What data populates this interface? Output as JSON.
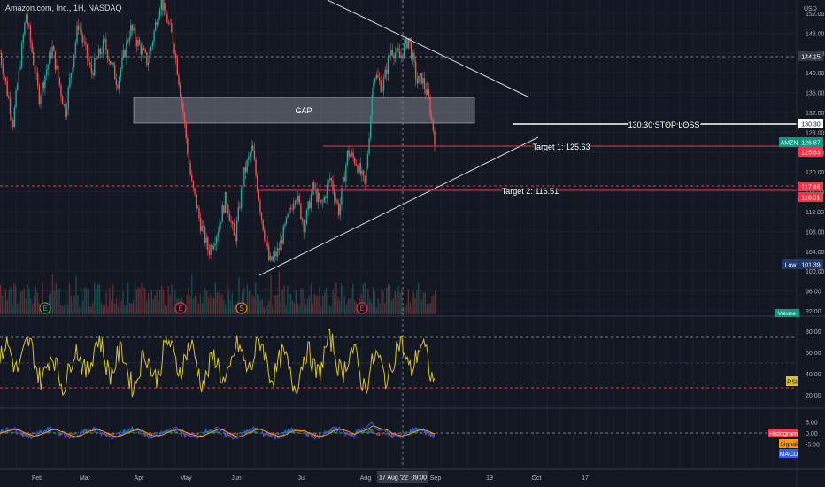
{
  "header": {
    "title": "Amazon.com, Inc., 1H, NASDAQ"
  },
  "price_axis": {
    "currency": "USD",
    "ticks": [
      "152.00",
      "148.00",
      "144.00",
      "140.00",
      "136.00",
      "132.00",
      "128.00",
      "124.00",
      "120.00",
      "116.00",
      "112.00",
      "108.00",
      "104.00",
      "100.00",
      "96.00",
      "92.00"
    ]
  },
  "rsi_axis": {
    "ticks": [
      "80.00",
      "60.00",
      "40.00",
      "20.00"
    ]
  },
  "macd_axis": {
    "ticks": [
      "5.00",
      "0.00",
      "-5.00"
    ]
  },
  "time_axis": {
    "labels": [
      "Feb",
      "Mar",
      "Apr",
      "May",
      "Jun",
      "Jul",
      "Aug",
      "Sep",
      "19",
      "Oct",
      "17"
    ],
    "crosshair_label": "17 Aug '22",
    "crosshair_time": "09:00"
  },
  "annotations": {
    "gap": "GAP",
    "stop_loss": "130.30 STOP LOSS",
    "target1": "Target 1:  125.63",
    "target2": "Target 2: 116.51"
  },
  "badges": {
    "crosshair_price": "144.15",
    "stop": "130.30",
    "symbol": "AMZN",
    "last_price": "126.87",
    "target1": "125.63",
    "level_117": "117.46",
    "target2": "116.51",
    "low_label": "Low",
    "low_value": "101.39",
    "volume": "Volume",
    "rsi": "RSI",
    "histogram": "Histogram",
    "signal": "Signal",
    "macd": "MACD"
  },
  "colors": {
    "background": "#131722",
    "up": "#26a69a",
    "down": "#ef5350",
    "rsi_line": "#d8c21f",
    "macd_line": "#2962ff",
    "signal_line": "#ff9800",
    "level_red": "#f23645",
    "trendline": "#b2b5be"
  },
  "chart_data": {
    "type": "candlestick",
    "title": "Amazon.com, Inc., 1H, NASDAQ",
    "price_range": [
      90,
      154
    ],
    "price_path": [
      [
        0,
        144
      ],
      [
        0.03,
        130
      ],
      [
        0.06,
        152
      ],
      [
        0.09,
        135
      ],
      [
        0.12,
        145
      ],
      [
        0.15,
        132
      ],
      [
        0.18,
        150
      ],
      [
        0.21,
        140
      ],
      [
        0.24,
        146
      ],
      [
        0.27,
        138
      ],
      [
        0.3,
        149
      ],
      [
        0.34,
        142
      ],
      [
        0.37,
        155
      ],
      [
        0.4,
        146
      ],
      [
        0.42,
        133
      ],
      [
        0.44,
        118
      ],
      [
        0.46,
        110
      ],
      [
        0.48,
        104
      ],
      [
        0.5,
        108
      ],
      [
        0.52,
        115
      ],
      [
        0.54,
        106
      ],
      [
        0.56,
        119
      ],
      [
        0.58,
        125
      ],
      [
        0.6,
        112
      ],
      [
        0.62,
        101.5
      ],
      [
        0.64,
        104
      ],
      [
        0.66,
        110
      ],
      [
        0.68,
        116
      ],
      [
        0.7,
        109
      ],
      [
        0.72,
        117
      ],
      [
        0.74,
        113
      ],
      [
        0.76,
        119
      ],
      [
        0.78,
        112
      ],
      [
        0.8,
        124
      ],
      [
        0.82,
        122
      ],
      [
        0.84,
        117
      ],
      [
        0.86,
        140
      ],
      [
        0.88,
        137
      ],
      [
        0.9,
        145
      ],
      [
        0.92,
        143
      ],
      [
        0.94,
        147
      ],
      [
        0.96,
        138
      ],
      [
        0.97,
        139
      ],
      [
        0.985,
        135
      ],
      [
        1.0,
        126.87
      ]
    ],
    "levels": [
      {
        "label": "130.30 STOP LOSS",
        "value": 130.3
      },
      {
        "label": "Target 1:  125.63",
        "value": 125.63
      },
      {
        "label": "Target 2: 116.51",
        "value": 116.51
      },
      {
        "label": "",
        "value": 117.46
      }
    ],
    "gap_zone": {
      "label": "GAP",
      "from": 129.8,
      "to": 135.6
    },
    "last_price": 126.87,
    "low": 101.39,
    "rsi_range": [
      10,
      85
    ],
    "macd_range": [
      -8,
      8
    ]
  }
}
